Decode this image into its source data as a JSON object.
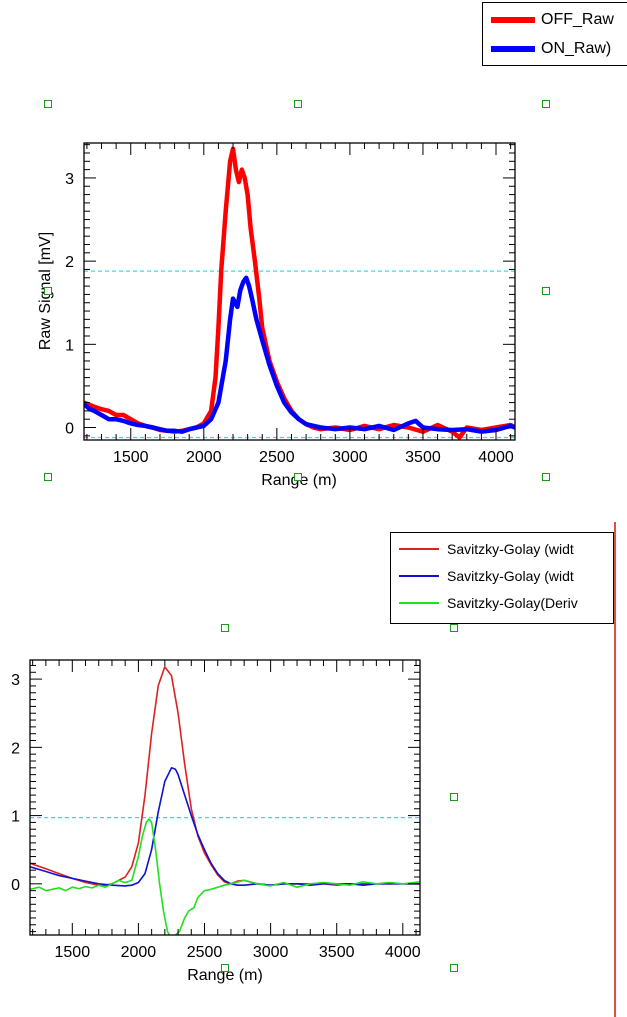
{
  "charts": [
    {
      "type": "line",
      "ylabel": "Raw Signal [mV]",
      "xlabel": "Range (m)",
      "xlim": [
        1180,
        4130
      ],
      "ylim": [
        -0.15,
        3.42
      ],
      "xticks": [
        1500,
        2000,
        2500,
        3000,
        3500,
        4000
      ],
      "yticks": [
        0,
        1,
        2,
        3
      ],
      "threshold_lines": [
        1.88,
        -0.12
      ],
      "threshold_color": "#33e0e0",
      "legend": {
        "position": "top-right",
        "items": [
          {
            "label": "OFF_Raw",
            "color": "#ff0000"
          },
          {
            "label": "ON_Raw)",
            "color": "#0000ff"
          }
        ]
      },
      "series": [
        {
          "name": "OFF_Raw",
          "color": "#ff0000",
          "width": 4.5,
          "x": [
            1180,
            1250,
            1300,
            1350,
            1400,
            1450,
            1500,
            1550,
            1600,
            1650,
            1700,
            1750,
            1800,
            1850,
            1900,
            1950,
            2000,
            2050,
            2080,
            2100,
            2120,
            2150,
            2180,
            2200,
            2220,
            2240,
            2260,
            2280,
            2300,
            2320,
            2350,
            2380,
            2400,
            2450,
            2500,
            2550,
            2600,
            2650,
            2700,
            2750,
            2800,
            2900,
            3000,
            3100,
            3200,
            3300,
            3400,
            3500,
            3600,
            3700,
            3750,
            3800,
            3900,
            4000,
            4100,
            4130
          ],
          "y": [
            0.3,
            0.25,
            0.22,
            0.2,
            0.15,
            0.15,
            0.1,
            0.05,
            0.02,
            0.0,
            -0.03,
            -0.04,
            -0.05,
            -0.04,
            -0.02,
            0.0,
            0.05,
            0.2,
            0.6,
            1.2,
            1.9,
            2.6,
            3.2,
            3.35,
            3.1,
            2.95,
            3.1,
            3.0,
            2.8,
            2.4,
            2.0,
            1.55,
            1.2,
            0.8,
            0.55,
            0.35,
            0.2,
            0.1,
            0.04,
            0.0,
            -0.02,
            0.0,
            -0.03,
            0.02,
            -0.02,
            0.03,
            0.0,
            -0.05,
            0.03,
            -0.05,
            -0.12,
            0.0,
            -0.03,
            0.0,
            0.03,
            0.0
          ]
        },
        {
          "name": "ON_Raw)",
          "color": "#0000ff",
          "width": 4.5,
          "x": [
            1180,
            1220,
            1250,
            1300,
            1350,
            1400,
            1450,
            1500,
            1550,
            1600,
            1650,
            1700,
            1750,
            1800,
            1850,
            1900,
            1950,
            2000,
            2050,
            2100,
            2150,
            2180,
            2200,
            2230,
            2250,
            2270,
            2290,
            2310,
            2330,
            2360,
            2400,
            2450,
            2500,
            2550,
            2600,
            2650,
            2700,
            2800,
            2900,
            3000,
            3100,
            3200,
            3300,
            3400,
            3450,
            3500,
            3600,
            3700,
            3800,
            3900,
            4000,
            4100,
            4130
          ],
          "y": [
            0.28,
            0.22,
            0.2,
            0.15,
            0.1,
            0.1,
            0.08,
            0.05,
            0.03,
            0.02,
            0.0,
            -0.02,
            -0.04,
            -0.04,
            -0.05,
            -0.02,
            0.0,
            0.02,
            0.1,
            0.3,
            0.8,
            1.3,
            1.55,
            1.45,
            1.65,
            1.75,
            1.8,
            1.7,
            1.55,
            1.3,
            1.05,
            0.75,
            0.5,
            0.3,
            0.18,
            0.1,
            0.04,
            0.0,
            -0.02,
            0.0,
            -0.02,
            0.02,
            -0.03,
            0.05,
            0.08,
            0.0,
            -0.02,
            -0.03,
            -0.02,
            -0.05,
            -0.03,
            0.02,
            0.0
          ]
        }
      ]
    },
    {
      "type": "line",
      "ylabel": "",
      "xlabel": "Range (m)",
      "xlim": [
        1180,
        4130
      ],
      "ylim": [
        -0.75,
        3.28
      ],
      "xticks": [
        1500,
        2000,
        2500,
        3000,
        3500,
        4000
      ],
      "yticks": [
        0,
        1,
        2,
        3
      ],
      "threshold_lines": [
        0.97
      ],
      "threshold_color": "#33e0e0",
      "legend": {
        "position": "top-right",
        "items": [
          {
            "label": "Savitzky-Golay (widt",
            "color": "#e02020"
          },
          {
            "label": "Savitzky-Golay (widt",
            "color": "#1010d0"
          },
          {
            "label": "Savitzky-Golay(Deriv",
            "color": "#20e020"
          }
        ]
      },
      "series": [
        {
          "name": "Savitzky-Golay (widt",
          "color": "#e02020",
          "width": 1.6,
          "x": [
            1180,
            1300,
            1400,
            1500,
            1600,
            1700,
            1750,
            1800,
            1850,
            1900,
            1950,
            2000,
            2050,
            2100,
            2150,
            2200,
            2250,
            2300,
            2350,
            2400,
            2450,
            2500,
            2550,
            2600,
            2650,
            2700,
            2750,
            2800,
            2900,
            3000,
            3100,
            3200,
            3300,
            3400,
            3500,
            3600,
            3700,
            3800,
            3900,
            4000,
            4130
          ],
          "y": [
            0.3,
            0.22,
            0.15,
            0.08,
            0.02,
            -0.02,
            -0.02,
            0.0,
            0.05,
            0.1,
            0.25,
            0.6,
            1.3,
            2.2,
            2.9,
            3.18,
            3.05,
            2.5,
            1.75,
            1.1,
            0.7,
            0.45,
            0.28,
            0.13,
            0.03,
            0.0,
            0.04,
            0.05,
            0.0,
            -0.02,
            0.0,
            0.0,
            0.0,
            0.0,
            -0.02,
            0.0,
            0.0,
            0.0,
            0.0,
            0.0,
            0.0
          ]
        },
        {
          "name": "Savitzky-Golay (widt",
          "color": "#1010d0",
          "width": 1.6,
          "x": [
            1180,
            1300,
            1400,
            1500,
            1600,
            1700,
            1800,
            1900,
            1950,
            2000,
            2050,
            2100,
            2150,
            2200,
            2250,
            2280,
            2300,
            2350,
            2400,
            2450,
            2500,
            2550,
            2600,
            2650,
            2700,
            2750,
            2800,
            2900,
            3000,
            3100,
            3200,
            3300,
            3400,
            3500,
            3600,
            3700,
            3800,
            3900,
            4000,
            4130
          ],
          "y": [
            0.25,
            0.18,
            0.12,
            0.08,
            0.04,
            0.0,
            -0.02,
            -0.03,
            -0.02,
            0.02,
            0.15,
            0.5,
            1.05,
            1.5,
            1.7,
            1.68,
            1.6,
            1.3,
            1.0,
            0.72,
            0.5,
            0.3,
            0.15,
            0.05,
            0.0,
            -0.02,
            -0.02,
            0.0,
            -0.02,
            0.0,
            0.0,
            -0.02,
            0.0,
            0.0,
            0.0,
            -0.02,
            0.0,
            0.0,
            0.0,
            0.0
          ]
        },
        {
          "name": "Savitzky-Golay(Deriv",
          "color": "#20e020",
          "width": 1.6,
          "x": [
            1180,
            1250,
            1300,
            1350,
            1400,
            1450,
            1500,
            1550,
            1600,
            1650,
            1700,
            1750,
            1800,
            1850,
            1900,
            1950,
            2000,
            2030,
            2060,
            2080,
            2100,
            2130,
            2160,
            2190,
            2220,
            2250,
            2280,
            2310,
            2330,
            2350,
            2380,
            2420,
            2450,
            2500,
            2550,
            2600,
            2650,
            2700,
            2800,
            2900,
            3000,
            3100,
            3200,
            3300,
            3400,
            3500,
            3600,
            3700,
            3800,
            3900,
            4000,
            4130
          ],
          "y": [
            -0.08,
            -0.05,
            -0.1,
            -0.08,
            -0.06,
            -0.1,
            -0.05,
            -0.07,
            -0.04,
            -0.06,
            -0.02,
            -0.05,
            0.0,
            0.05,
            0.02,
            0.05,
            0.4,
            0.7,
            0.9,
            0.95,
            0.9,
            0.5,
            0.0,
            -0.4,
            -0.7,
            -0.8,
            -0.75,
            -0.7,
            -0.6,
            -0.5,
            -0.4,
            -0.35,
            -0.2,
            -0.1,
            -0.08,
            -0.05,
            -0.02,
            0.0,
            0.05,
            0.0,
            -0.03,
            0.02,
            -0.05,
            0.0,
            0.02,
            0.0,
            -0.02,
            0.03,
            0.0,
            0.02,
            0.0,
            0.03
          ]
        }
      ]
    }
  ]
}
